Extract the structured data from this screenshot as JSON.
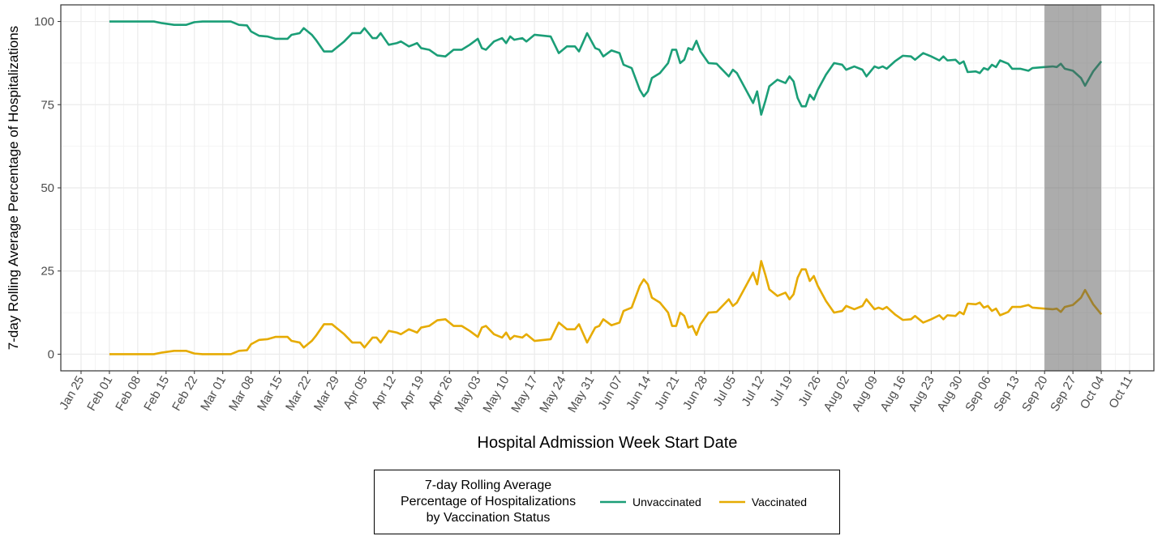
{
  "chart_data": {
    "type": "line",
    "y_label": "7-day Rolling Average Percentage of Hospitalizations",
    "x_label": "Hospital Admission Week Start Date",
    "legend_title": "7-day Rolling Average Percentage of Hospitalizations by Vaccination Status",
    "legend_position": "bottom",
    "grid": true,
    "ylim": [
      -5,
      105
    ],
    "yticks": [
      0,
      25,
      50,
      75,
      100
    ],
    "xlim": [
      "Jan 20",
      "Oct 17"
    ],
    "xticks": [
      "Jan 25",
      "Feb 01",
      "Feb 08",
      "Feb 15",
      "Feb 22",
      "Mar 01",
      "Mar 08",
      "Mar 15",
      "Mar 22",
      "Mar 29",
      "Apr 05",
      "Apr 12",
      "Apr 19",
      "Apr 26",
      "May 03",
      "May 10",
      "May 17",
      "May 24",
      "May 31",
      "Jun 07",
      "Jun 14",
      "Jun 21",
      "Jun 28",
      "Jul 05",
      "Jul 12",
      "Jul 19",
      "Jul 26",
      "Aug 02",
      "Aug 09",
      "Aug 16",
      "Aug 23",
      "Aug 30",
      "Sep 06",
      "Sep 13",
      "Sep 20",
      "Sep 27",
      "Oct 04",
      "Oct 11"
    ],
    "shaded_range": [
      "Sep 20",
      "Oct 04"
    ],
    "x": [
      "Feb 01",
      "Feb 12",
      "Feb 14",
      "Feb 17",
      "Feb 20",
      "Feb 22",
      "Feb 24",
      "Mar 03",
      "Mar 05",
      "Mar 07",
      "Mar 08",
      "Mar 10",
      "Mar 12",
      "Mar 14",
      "Mar 17",
      "Mar 18",
      "Mar 20",
      "Mar 21",
      "Mar 23",
      "Mar 24",
      "Mar 26",
      "Mar 28",
      "Mar 29",
      "Mar 31",
      "Apr 02",
      "Apr 04",
      "Apr 05",
      "Apr 07",
      "Apr 08",
      "Apr 09",
      "Apr 11",
      "Apr 13",
      "Apr 14",
      "Apr 16",
      "Apr 18",
      "Apr 19",
      "Apr 21",
      "Apr 23",
      "Apr 25",
      "Apr 27",
      "Apr 29",
      "May 01",
      "May 03",
      "May 04",
      "May 05",
      "May 07",
      "May 09",
      "May 10",
      "May 11",
      "May 12",
      "May 14",
      "May 15",
      "May 17",
      "May 21",
      "May 23",
      "May 25",
      "May 27",
      "May 28",
      "May 30",
      "Jun 01",
      "Jun 02",
      "Jun 03",
      "Jun 05",
      "Jun 07",
      "Jun 08",
      "Jun 10",
      "Jun 12",
      "Jun 13",
      "Jun 14",
      "Jun 15",
      "Jun 17",
      "Jun 19",
      "Jun 20",
      "Jun 21",
      "Jun 22",
      "Jun 23",
      "Jun 24",
      "Jun 25",
      "Jun 26",
      "Jun 27",
      "Jun 29",
      "Jul 01",
      "Jul 04",
      "Jul 05",
      "Jul 06",
      "Jul 08",
      "Jul 10",
      "Jul 11",
      "Jul 12",
      "Jul 13",
      "Jul 14",
      "Jul 16",
      "Jul 18",
      "Jul 19",
      "Jul 20",
      "Jul 21",
      "Jul 22",
      "Jul 23",
      "Jul 24",
      "Jul 25",
      "Jul 26",
      "Jul 28",
      "Jul 30",
      "Aug 01",
      "Aug 02",
      "Aug 04",
      "Aug 06",
      "Aug 07",
      "Aug 09",
      "Aug 10",
      "Aug 11",
      "Aug 12",
      "Aug 14",
      "Aug 16",
      "Aug 18",
      "Aug 19",
      "Aug 21",
      "Aug 23",
      "Aug 25",
      "Aug 26",
      "Aug 27",
      "Aug 29",
      "Aug 30",
      "Aug 31",
      "Sep 01",
      "Sep 03",
      "Sep 04",
      "Sep 05",
      "Sep 06",
      "Sep 07",
      "Sep 08",
      "Sep 09",
      "Sep 11",
      "Sep 12",
      "Sep 14",
      "Sep 16",
      "Sep 17",
      "Sep 20",
      "Sep 22",
      "Sep 23",
      "Sep 24",
      "Sep 25",
      "Sep 27",
      "Sep 29",
      "Sep 30",
      "Oct 02",
      "Oct 04"
    ],
    "series": [
      {
        "name": "Unvaccinated",
        "color": "#1b9e77",
        "values": [
          100,
          100,
          99.5,
          99,
          99,
          99.8,
          100,
          100,
          99,
          98.8,
          97,
          95.7,
          95.5,
          94.8,
          94.8,
          96,
          96.5,
          98,
          96,
          94.5,
          91,
          91,
          92,
          94,
          96.5,
          96.5,
          98,
          95,
          95,
          96.5,
          93,
          93.5,
          94,
          92.5,
          93.5,
          92,
          91.5,
          89.8,
          89.5,
          91.5,
          91.5,
          93,
          94.8,
          92,
          91.5,
          94,
          95,
          93.5,
          95.5,
          94.5,
          95,
          94,
          96,
          95.5,
          90.5,
          92.5,
          92.5,
          91,
          96.5,
          92,
          91.5,
          89.5,
          91.3,
          90.5,
          87,
          86,
          79.5,
          77.5,
          79,
          83,
          84.5,
          87.5,
          91.5,
          91.5,
          87.5,
          88.5,
          92,
          91.5,
          94.2,
          91,
          87.5,
          87.3,
          83.5,
          85.5,
          84.5,
          80,
          75.5,
          79,
          72,
          76,
          80.5,
          82.5,
          81.5,
          83.5,
          82,
          77,
          74.5,
          74.5,
          78,
          76.5,
          79.5,
          84,
          87.5,
          87,
          85.5,
          86.5,
          85.5,
          83.5,
          86.5,
          86,
          86.5,
          85.8,
          88,
          89.7,
          89.5,
          88.5,
          90.5,
          89.5,
          88.3,
          89.5,
          88.3,
          88.5,
          87.3,
          88,
          84.8,
          85,
          84.5,
          86,
          85.5,
          87,
          86.3,
          88.3,
          87.3,
          85.8,
          85.8,
          85.2,
          86,
          86.3,
          86.5,
          86.3,
          87.3,
          85.8,
          85.2,
          83,
          80.7,
          85,
          88
        ]
      },
      {
        "name": "Vaccinated",
        "color": "#e6ab02",
        "values": [
          0,
          0,
          0.5,
          1,
          1,
          0.2,
          0,
          0,
          1,
          1.2,
          3,
          4.3,
          4.5,
          5.2,
          5.2,
          4,
          3.5,
          2,
          4,
          5.5,
          9,
          9,
          8,
          6,
          3.5,
          3.5,
          2,
          5,
          5,
          3.5,
          7,
          6.5,
          6,
          7.5,
          6.5,
          8,
          8.5,
          10.2,
          10.5,
          8.5,
          8.5,
          7,
          5.2,
          8,
          8.5,
          6,
          5,
          6.5,
          4.5,
          5.5,
          5,
          6,
          4,
          4.5,
          9.5,
          7.5,
          7.5,
          9,
          3.5,
          8,
          8.5,
          10.5,
          8.7,
          9.5,
          13,
          14,
          20.5,
          22.5,
          21,
          17,
          15.5,
          12.5,
          8.5,
          8.5,
          12.5,
          11.5,
          8,
          8.5,
          5.8,
          9,
          12.5,
          12.7,
          16.5,
          14.5,
          15.5,
          20,
          24.5,
          21,
          28,
          24,
          19.5,
          17.5,
          18.5,
          16.5,
          18,
          23,
          25.5,
          25.5,
          22,
          23.5,
          20.5,
          16,
          12.5,
          13,
          14.5,
          13.5,
          14.5,
          16.5,
          13.5,
          14,
          13.5,
          14.2,
          12,
          10.3,
          10.5,
          11.5,
          9.5,
          10.5,
          11.7,
          10.5,
          11.7,
          11.5,
          12.7,
          12,
          15.2,
          15,
          15.5,
          14,
          14.5,
          13,
          13.7,
          11.7,
          12.7,
          14.2,
          14.2,
          14.8,
          14,
          13.7,
          13.5,
          13.7,
          12.7,
          14.2,
          14.8,
          17,
          19.3,
          15,
          12
        ]
      }
    ]
  }
}
